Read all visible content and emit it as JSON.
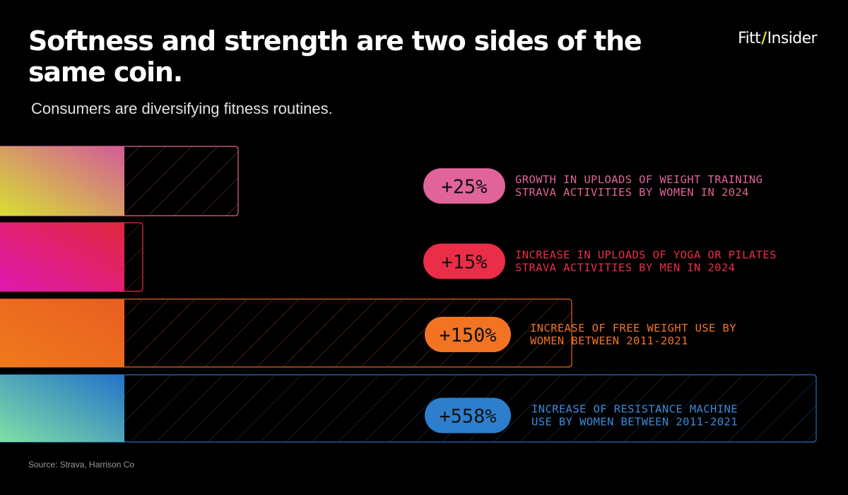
{
  "title": "Softness and strength are two sides of the same coin.",
  "subtitle": "Consumers are diversifying fitness routines.",
  "logo": {
    "left": "Fitt",
    "slash": "/",
    "right": "Insider"
  },
  "source": "Source: Strava, Harrison Co",
  "chart_data": {
    "type": "bar",
    "orientation": "horizontal",
    "unit": "% increase",
    "grid": false,
    "legend": "none",
    "xlim": [
      0,
      558
    ],
    "bars": [
      {
        "label": "+25%",
        "value": 25,
        "desc_lines": [
          "GROWTH IN UPLOADS OF WEIGHT TRAINING",
          "STRAVA ACTIVITIES BY WOMEN IN 2024"
        ],
        "pill_color": "#e0639a",
        "text_color": "#e0639a",
        "outline_color": "#e0639a",
        "gradient": [
          "#d7e032",
          "#d45a98"
        ]
      },
      {
        "label": "+15%",
        "value": 15,
        "desc_lines": [
          "INCREASE IN UPLOADS OF YOGA OR PILATES",
          "STRAVA ACTIVITIES BY MEN IN 2024"
        ],
        "pill_color": "#ea2e48",
        "text_color": "#ea2e48",
        "outline_color": "#ea2e48",
        "gradient": [
          "#e018b0",
          "#e0283c"
        ]
      },
      {
        "label": "+150%",
        "value": 150,
        "desc_lines": [
          "INCREASE OF FREE WEIGHT USE BY",
          "WOMEN BETWEEN 2011-2021"
        ],
        "pill_color": "#f27423",
        "text_color": "#f27423",
        "outline_color": "#e6661f",
        "gradient": [
          "#f07a1c",
          "#e85e22"
        ]
      },
      {
        "label": "+558%",
        "value": 558,
        "desc_lines": [
          "INCREASE OF RESISTANCE MACHINE",
          "USE BY WOMEN BETWEEN 2011-2021"
        ],
        "pill_color": "#2d7fce",
        "text_color": "#3b8ad8",
        "outline_color": "#2f6eb4",
        "gradient": [
          "#7fe0a6",
          "#2472c8"
        ]
      }
    ]
  }
}
